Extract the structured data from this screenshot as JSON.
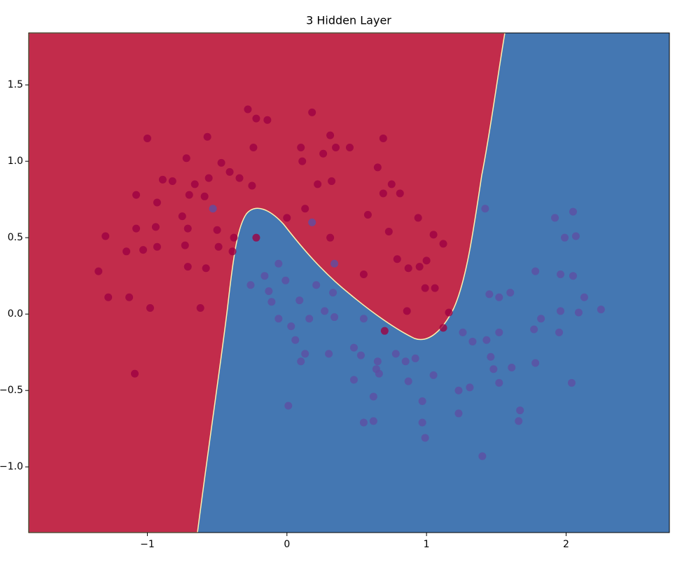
{
  "chart_data": {
    "type": "scatter",
    "title": "3 Hidden Layer",
    "xlim": [
      -1.85,
      2.74
    ],
    "ylim": [
      -1.43,
      1.84
    ],
    "xticks": [
      {
        "value": -1,
        "label": "−1"
      },
      0,
      1,
      2
    ],
    "yticks": [
      {
        "value": -1,
        "label": "−1.0"
      },
      {
        "value": -0.5,
        "label": "−0.5"
      },
      {
        "value": 0,
        "label": "0.0"
      },
      {
        "value": 0.5,
        "label": "0.5"
      },
      {
        "value": 1,
        "label": "1.0"
      },
      {
        "value": 1.5,
        "label": "1.5"
      }
    ],
    "series": [
      {
        "color": "#9e0142",
        "x": [
          -1.0,
          -0.57,
          -0.28,
          -0.22,
          -0.14,
          0.18,
          0.31,
          0.69,
          -0.24,
          0.1,
          0.35,
          0.45,
          0.26,
          -0.72,
          -0.47,
          -0.41,
          -0.34,
          -0.56,
          0.11,
          0.65,
          -0.89,
          -0.82,
          -0.66,
          -0.25,
          0.32,
          0.22,
          0.75,
          -1.08,
          -0.93,
          -0.7,
          -0.59,
          0.69,
          0.81,
          -0.75,
          0.0,
          0.13,
          0.58,
          0.94,
          -1.3,
          -1.08,
          -0.94,
          -0.71,
          -0.5,
          -0.38,
          0.31,
          0.73,
          1.05,
          1.12,
          -1.15,
          -1.03,
          -0.93,
          -0.73,
          -0.49,
          -0.39,
          -0.22,
          0.79,
          1.0,
          0.87,
          0.95,
          -1.35,
          -0.71,
          -0.58,
          0.55,
          0.99,
          1.06,
          -1.28,
          -1.13,
          -0.98,
          -0.62,
          0.86,
          1.16,
          1.12,
          -1.09,
          0.7
        ],
        "values": [
          1.15,
          1.16,
          1.34,
          1.28,
          1.27,
          1.32,
          1.17,
          1.15,
          1.09,
          1.09,
          1.09,
          1.09,
          1.05,
          1.02,
          0.99,
          0.93,
          0.89,
          0.89,
          1.0,
          0.96,
          0.88,
          0.87,
          0.85,
          0.84,
          0.87,
          0.85,
          0.85,
          0.78,
          0.73,
          0.78,
          0.77,
          0.79,
          0.79,
          0.64,
          0.63,
          0.69,
          0.65,
          0.63,
          0.51,
          0.56,
          0.57,
          0.56,
          0.55,
          0.5,
          0.5,
          0.54,
          0.52,
          0.46,
          0.41,
          0.42,
          0.44,
          0.45,
          0.44,
          0.41,
          0.5,
          0.36,
          0.35,
          0.3,
          0.31,
          0.28,
          0.31,
          0.3,
          0.26,
          0.17,
          0.17,
          0.11,
          0.11,
          0.04,
          0.04,
          0.02,
          0.01,
          -0.09,
          -0.39,
          -0.11
        ]
      },
      {
        "color": "#5e4fa2",
        "x": [
          -0.53,
          0.18,
          1.42,
          1.92,
          2.05,
          1.99,
          2.07,
          0.34,
          -0.06,
          -0.16,
          -0.26,
          -0.13,
          -0.01,
          0.21,
          0.33,
          -0.11,
          0.09,
          0.27,
          0.34,
          0.16,
          -0.06,
          0.03,
          0.06,
          0.13,
          0.1,
          0.3,
          0.48,
          0.53,
          0.55,
          0.65,
          0.64,
          0.66,
          0.78,
          0.85,
          0.92,
          0.87,
          0.48,
          0.62,
          0.55,
          0.62,
          0.97,
          0.97,
          0.99,
          0.01,
          1.05,
          1.26,
          1.33,
          1.43,
          1.45,
          1.52,
          1.6,
          1.78,
          1.82,
          1.77,
          1.78,
          1.96,
          2.05,
          1.96,
          2.09,
          2.13,
          2.25,
          1.95,
          1.52,
          1.46,
          1.48,
          1.61,
          1.52,
          1.23,
          1.31,
          1.23,
          1.67,
          1.66,
          2.04,
          1.4
        ],
        "values": [
          0.69,
          0.6,
          0.69,
          0.63,
          0.67,
          0.5,
          0.51,
          0.33,
          0.33,
          0.25,
          0.19,
          0.15,
          0.22,
          0.19,
          0.14,
          0.08,
          0.09,
          0.02,
          -0.02,
          -0.03,
          -0.03,
          -0.08,
          -0.17,
          -0.26,
          -0.31,
          -0.26,
          -0.22,
          -0.27,
          -0.03,
          -0.31,
          -0.36,
          -0.39,
          -0.26,
          -0.31,
          -0.29,
          -0.44,
          -0.43,
          -0.54,
          -0.71,
          -0.7,
          -0.57,
          -0.71,
          -0.81,
          -0.6,
          -0.4,
          -0.12,
          -0.18,
          -0.17,
          0.13,
          0.11,
          0.14,
          0.28,
          -0.03,
          -0.1,
          -0.32,
          0.26,
          0.25,
          0.02,
          0.01,
          0.11,
          0.03,
          -0.12,
          -0.12,
          -0.28,
          -0.36,
          -0.35,
          -0.45,
          -0.5,
          -0.48,
          -0.65,
          -0.63,
          -0.7,
          -0.45,
          -0.93
        ]
      }
    ]
  }
}
